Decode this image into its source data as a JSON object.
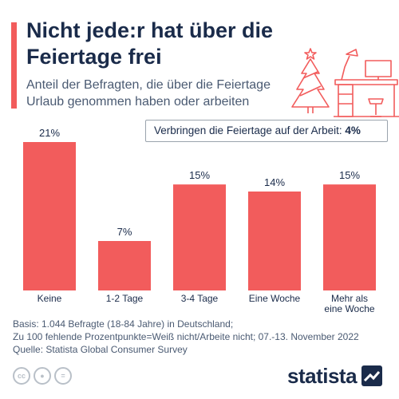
{
  "header": {
    "title": "Nicht jede:r hat über die Feiertage frei",
    "subtitle": "Anteil der Befragten, die über die Feiertage Urlaub genommen haben oder arbeiten"
  },
  "callout": {
    "label": "Verbringen die Feiertage auf der Arbeit:",
    "value": "4%"
  },
  "chart_data": {
    "type": "bar",
    "categories": [
      "Keine",
      "1-2 Tage",
      "3-4 Tage",
      "Eine Woche",
      "Mehr als eine Woche"
    ],
    "category_lines": [
      [
        "Keine"
      ],
      [
        "1-2 Tage"
      ],
      [
        "3-4 Tage"
      ],
      [
        "Eine Woche"
      ],
      [
        "Mehr als",
        "eine Woche"
      ]
    ],
    "values": [
      21,
      7,
      15,
      14,
      15
    ],
    "value_labels": [
      "21%",
      "7%",
      "15%",
      "14%",
      "15%"
    ],
    "unit": "%",
    "bar_color": "#f25c5c",
    "grid": false
  },
  "footer": {
    "basis_line1": "Basis: 1.044 Befragte (18-84 Jahre) in Deutschland;",
    "basis_line2": "Zu 100 fehlende Prozentpunkte=Weiß nicht/Arbeite nicht; 07.-13. November 2022",
    "source": "Quelle: Statista Global Consumer Survey"
  },
  "license_icons": [
    "cc-icon",
    "person-icon",
    "equals-icon"
  ],
  "brand": {
    "name": "statista"
  },
  "colors": {
    "accent": "#f25c5c",
    "navy": "#1a2b4a",
    "text_gray": "#4a5a72"
  }
}
